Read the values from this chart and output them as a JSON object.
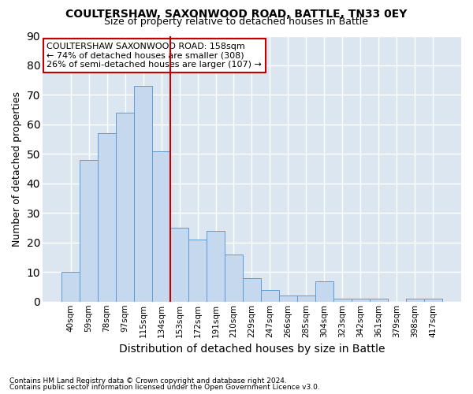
{
  "title": "COULTERSHAW, SAXONWOOD ROAD, BATTLE, TN33 0EY",
  "subtitle": "Size of property relative to detached houses in Battle",
  "xlabel": "Distribution of detached houses by size in Battle",
  "ylabel": "Number of detached properties",
  "footnote1": "Contains HM Land Registry data © Crown copyright and database right 2024.",
  "footnote2": "Contains public sector information licensed under the Open Government Licence v3.0.",
  "categories": [
    "40sqm",
    "59sqm",
    "78sqm",
    "97sqm",
    "115sqm",
    "134sqm",
    "153sqm",
    "172sqm",
    "191sqm",
    "210sqm",
    "229sqm",
    "247sqm",
    "266sqm",
    "285sqm",
    "304sqm",
    "323sqm",
    "342sqm",
    "361sqm",
    "379sqm",
    "398sqm",
    "417sqm"
  ],
  "values": [
    10,
    48,
    57,
    64,
    73,
    51,
    25,
    21,
    24,
    16,
    8,
    4,
    2,
    2,
    7,
    1,
    1,
    1,
    0,
    1,
    1
  ],
  "bar_color": "#c5d8ed",
  "bar_edge_color": "#5b9bd5",
  "plot_bg_color": "#dce6f1",
  "fig_bg_color": "#ffffff",
  "grid_color": "#ffffff",
  "vline_x_index": 6,
  "vline_color": "#c00000",
  "annotation_title": "COULTERSHAW SAXONWOOD ROAD: 158sqm",
  "annotation_line1": "← 74% of detached houses are smaller (308)",
  "annotation_line2": "26% of semi-detached houses are larger (107) →",
  "annotation_box_color": "#ffffff",
  "annotation_box_edge": "#c00000",
  "ylim": [
    0,
    90
  ],
  "yticks": [
    0,
    10,
    20,
    30,
    40,
    50,
    60,
    70,
    80,
    90
  ]
}
